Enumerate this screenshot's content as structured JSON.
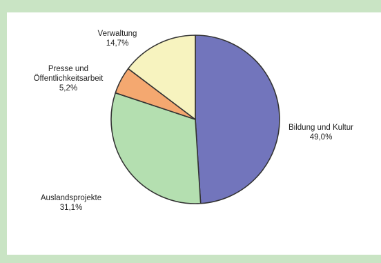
{
  "chart_data": {
    "type": "pie",
    "slices": [
      {
        "label": "Bildung und Kultur",
        "value": 49.0,
        "value_label": "49,0%",
        "color": "#7275bc"
      },
      {
        "label": "Auslandsprojekte",
        "value": 31.1,
        "value_label": "31,1%",
        "color": "#b4dfb0"
      },
      {
        "label": "Presse und Öffentlichkeitsarbeit",
        "label_lines": [
          "Presse und",
          "Öffentlichkeitsarbeit"
        ],
        "value": 5.2,
        "value_label": "5,2%",
        "color": "#f4a870"
      },
      {
        "label": "Verwaltung",
        "value": 14.7,
        "value_label": "14,7%",
        "color": "#f7f3bf"
      }
    ],
    "start_angle_deg": 0,
    "direction": "clockwise",
    "stroke_color": "#333333"
  }
}
